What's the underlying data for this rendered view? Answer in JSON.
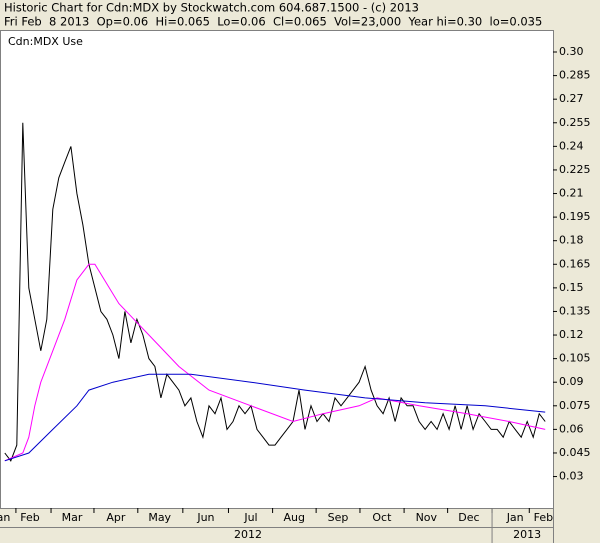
{
  "chart_data": {
    "type": "line",
    "title": "Historic Chart for Cdn:MDX by Stockwatch.com 604.687.1500 - (c) 2013",
    "subtitle": "Fri Feb  8 2013  Op=0.06  Hi=0.065  Lo=0.06  Cl=0.065  Vol=23,000  Year hi=0.30  lo=0.035",
    "label": "Cdn:MDX Use",
    "xlim": [
      -0.8,
      91.3
    ],
    "ylim": [
      0.01,
      0.314
    ],
    "yticks": [
      0.03,
      0.045,
      0.06,
      0.075,
      0.09,
      0.105,
      0.12,
      0.135,
      0.15,
      0.165,
      0.18,
      0.195,
      0.21,
      0.225,
      0.24,
      0.255,
      0.27,
      0.285,
      {
        "value": 0.3,
        "label": "0.30"
      }
    ],
    "xticks": [
      {
        "value": -0.5,
        "label": "Jan"
      },
      {
        "value": 4.2,
        "label": "Feb"
      },
      {
        "value": 11.2,
        "label": "Mar"
      },
      {
        "value": 18.5,
        "label": "Apr"
      },
      {
        "value": 25.8,
        "label": "May"
      },
      {
        "value": 33.5,
        "label": "Jun"
      },
      {
        "value": 41,
        "label": "Jul"
      },
      {
        "value": 48.2,
        "label": "Aug"
      },
      {
        "value": 55.5,
        "label": "Sep"
      },
      {
        "value": 62.8,
        "label": "Oct"
      },
      {
        "value": 70.2,
        "label": "Nov"
      },
      {
        "value": 77.3,
        "label": "Dec"
      },
      {
        "value": 85,
        "label": "Jan"
      },
      {
        "value": 89.7,
        "label": "Feb"
      }
    ],
    "year_ticks": [
      {
        "value": 40.5,
        "label": "2012"
      },
      {
        "value": 87,
        "label": "2013"
      }
    ],
    "series": [
      {
        "color": "#000000",
        "x": [
          0,
          1,
          2,
          3,
          4,
          5,
          6,
          7,
          8,
          9,
          10,
          11,
          12,
          13,
          14,
          15,
          16,
          17,
          18,
          19,
          20,
          21,
          22,
          23,
          24,
          25,
          26,
          27,
          28,
          29,
          30,
          31,
          32,
          33,
          34,
          35,
          36,
          37,
          38,
          39,
          40,
          41,
          42,
          43,
          44,
          45,
          46,
          47,
          48,
          49,
          50,
          51,
          52,
          53,
          54,
          55,
          56,
          57,
          58,
          59,
          60,
          61,
          62,
          63,
          64,
          65,
          66,
          67,
          68,
          69,
          70,
          71,
          72,
          73,
          74,
          75,
          76,
          77,
          78,
          79,
          80,
          81,
          82,
          83,
          84,
          85,
          86,
          87,
          88,
          89,
          90
        ],
        "values": [
          0.045,
          0.04,
          0.05,
          0.255,
          0.15,
          0.13,
          0.11,
          0.13,
          0.2,
          0.22,
          0.23,
          0.24,
          0.21,
          0.19,
          0.165,
          0.15,
          0.135,
          0.13,
          0.12,
          0.105,
          0.135,
          0.115,
          0.13,
          0.12,
          0.105,
          0.1,
          0.08,
          0.095,
          0.09,
          0.085,
          0.075,
          0.08,
          0.065,
          0.055,
          0.075,
          0.07,
          0.08,
          0.06,
          0.065,
          0.075,
          0.07,
          0.075,
          0.06,
          0.055,
          0.05,
          0.05,
          0.055,
          0.06,
          0.065,
          0.085,
          0.06,
          0.075,
          0.065,
          0.07,
          0.065,
          0.08,
          0.075,
          0.08,
          0.085,
          0.09,
          0.1,
          0.085,
          0.075,
          0.07,
          0.08,
          0.065,
          0.08,
          0.075,
          0.075,
          0.065,
          0.06,
          0.065,
          0.06,
          0.07,
          0.06,
          0.075,
          0.06,
          0.075,
          0.06,
          0.07,
          0.065,
          0.06,
          0.06,
          0.055,
          0.065,
          0.06,
          0.055,
          0.065,
          0.055,
          0.07,
          0.065
        ]
      },
      {
        "color": "#ff00ff",
        "x": [
          0,
          3,
          4,
          5,
          6,
          8,
          10,
          12,
          14,
          15,
          19,
          24,
          29,
          34,
          41,
          48,
          53,
          59,
          62,
          69,
          77,
          84,
          90
        ],
        "values": [
          0.04,
          0.045,
          0.055,
          0.075,
          0.09,
          0.11,
          0.13,
          0.155,
          0.165,
          0.165,
          0.14,
          0.12,
          0.1,
          0.085,
          0.075,
          0.065,
          0.07,
          0.075,
          0.08,
          0.075,
          0.07,
          0.065,
          0.06
        ]
      },
      {
        "color": "#0000cc",
        "x": [
          0,
          4,
          8,
          12,
          14,
          18,
          24,
          31,
          41,
          50,
          60,
          70,
          80,
          90
        ],
        "values": [
          0.04,
          0.045,
          0.06,
          0.075,
          0.085,
          0.09,
          0.095,
          0.095,
          0.09,
          0.085,
          0.08,
          0.077,
          0.075,
          0.071
        ]
      }
    ]
  }
}
